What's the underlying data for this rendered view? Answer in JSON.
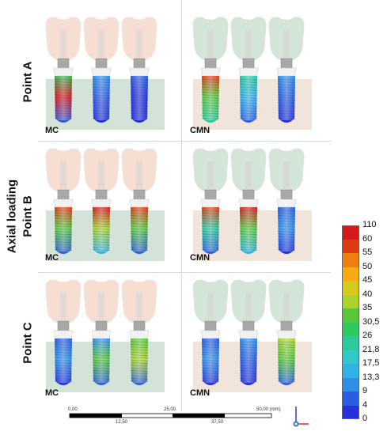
{
  "figure": {
    "main_label": "Axial loading",
    "rows": [
      {
        "label": "Point A",
        "left": "MC",
        "right": "CMN"
      },
      {
        "label": "Point B",
        "left": "MC",
        "right": "CMN"
      },
      {
        "label": "Point C",
        "left": "MC",
        "right": "CMN"
      }
    ]
  },
  "legend": {
    "values": [
      "110",
      "60",
      "55",
      "50",
      "45",
      "40",
      "35",
      "30,5",
      "26",
      "21,8",
      "17,5",
      "13,3",
      "9",
      "4",
      "0"
    ],
    "colors": [
      "#d7191c",
      "#e03a12",
      "#f07d10",
      "#f5ac10",
      "#d9c81c",
      "#a9d22a",
      "#58c83a",
      "#2fc85f",
      "#2bc99c",
      "#30c8c8",
      "#2fb3e6",
      "#2f8ee8",
      "#2a5de0",
      "#2430d8"
    ]
  },
  "scale_bar": {
    "top_ticks": [
      "0,00",
      "25,00",
      "50,00 (mm)"
    ],
    "bottom_ticks": [
      "12,50",
      "37,50"
    ]
  },
  "colors": {
    "crown_left": "#f6dcd0",
    "crown_right": "#cfe3d4",
    "bone_left": "#cfe0d3",
    "bone_right": "#efe1d6"
  }
}
